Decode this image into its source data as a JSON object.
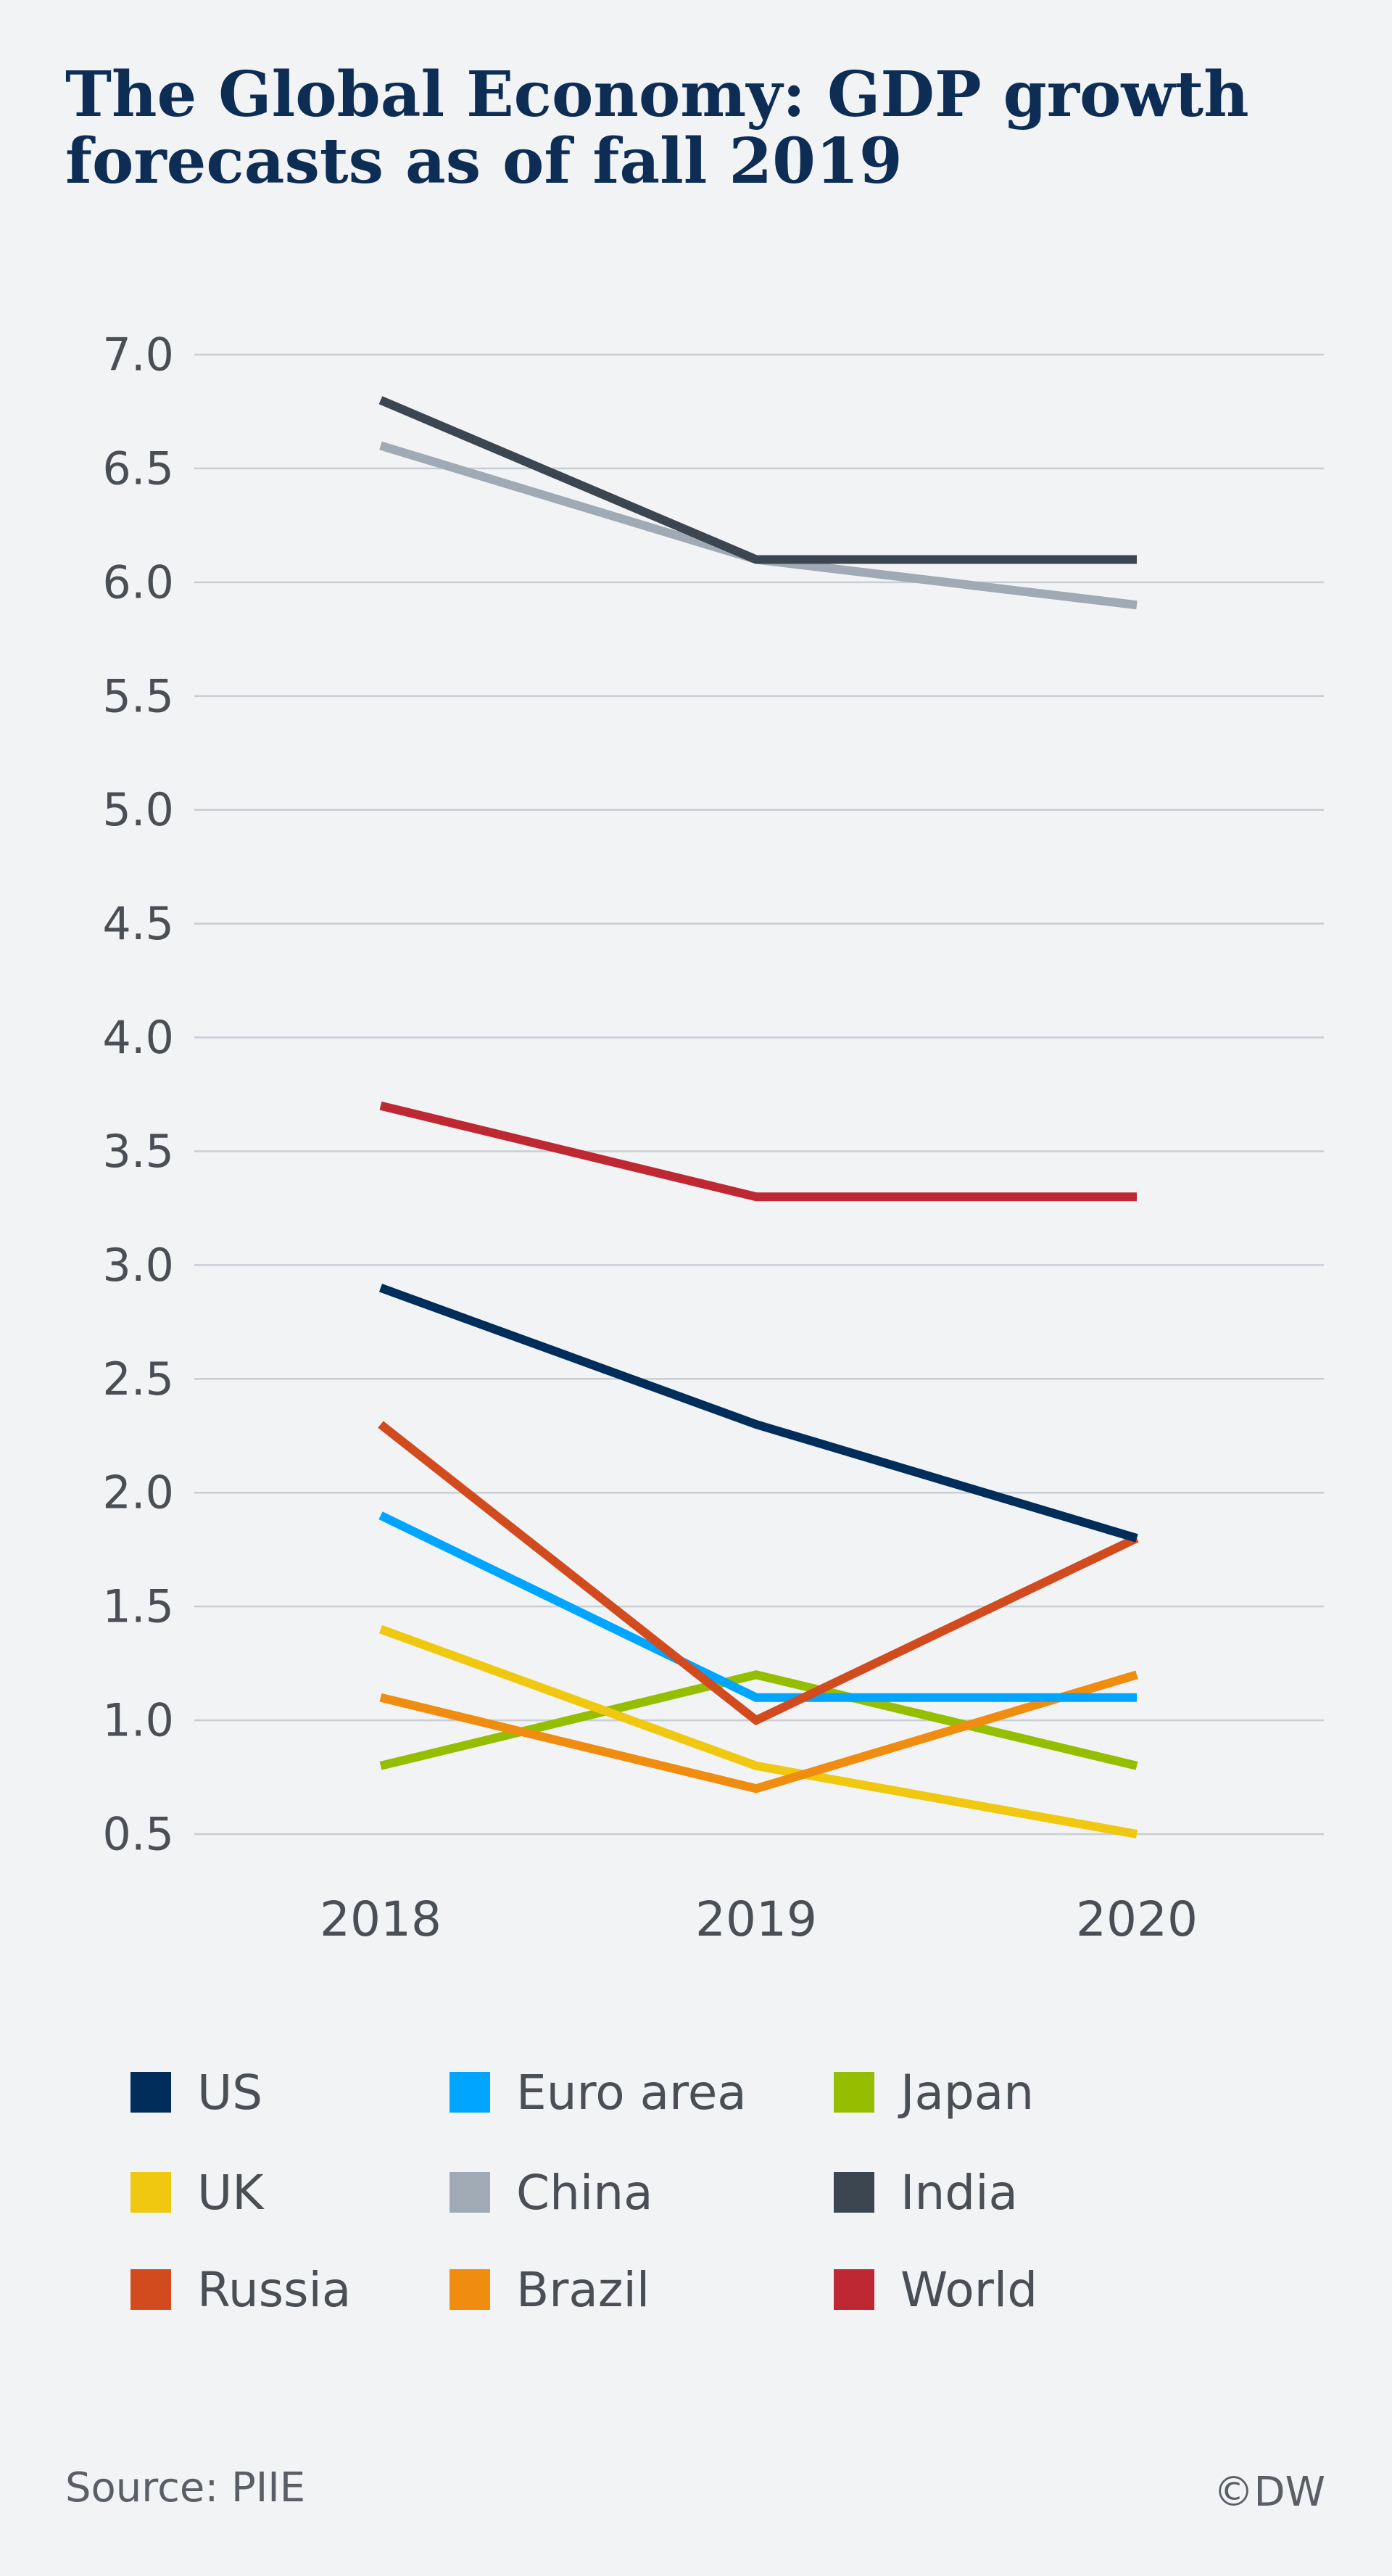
{
  "title_lines": [
    "The Global Economy: GDP growth",
    "forecasts as of fall 2019"
  ],
  "source": "Source: PIIE",
  "credit": "©DW",
  "chart_data": {
    "type": "line",
    "title": "The Global Economy: GDP growth forecasts as of fall 2019",
    "xlabel": "",
    "ylabel": "",
    "x": [
      "2018",
      "2019",
      "2020"
    ],
    "ylim": [
      0.5,
      7.0
    ],
    "yticks": [
      "7.0",
      "6.5",
      "6.0",
      "5.5",
      "5.0",
      "4.5",
      "4.0",
      "3.5",
      "3.0",
      "2.5",
      "2.0",
      "1.5",
      "1.0",
      "0.5"
    ],
    "grid": true,
    "legend_position": "bottom",
    "series": [
      {
        "name": "US",
        "color": "#002d5a",
        "values": [
          2.9,
          2.3,
          1.8
        ]
      },
      {
        "name": "Euro area",
        "color": "#00a5ff",
        "values": [
          1.9,
          1.1,
          1.1
        ]
      },
      {
        "name": "Japan",
        "color": "#96be00",
        "values": [
          0.8,
          1.2,
          0.8
        ]
      },
      {
        "name": "UK",
        "color": "#f0c80f",
        "values": [
          1.4,
          0.8,
          0.5
        ]
      },
      {
        "name": "China",
        "color": "#a0aab4",
        "values": [
          6.6,
          6.1,
          5.9
        ]
      },
      {
        "name": "India",
        "color": "#3c4650",
        "values": [
          6.8,
          6.1,
          6.1
        ]
      },
      {
        "name": "Russia",
        "color": "#d24b1e",
        "values": [
          2.3,
          1.0,
          1.8
        ]
      },
      {
        "name": "Brazil",
        "color": "#f08c0f",
        "values": [
          1.1,
          0.7,
          1.2
        ]
      },
      {
        "name": "World",
        "color": "#be2832",
        "values": [
          3.7,
          3.3,
          3.3
        ]
      }
    ]
  }
}
